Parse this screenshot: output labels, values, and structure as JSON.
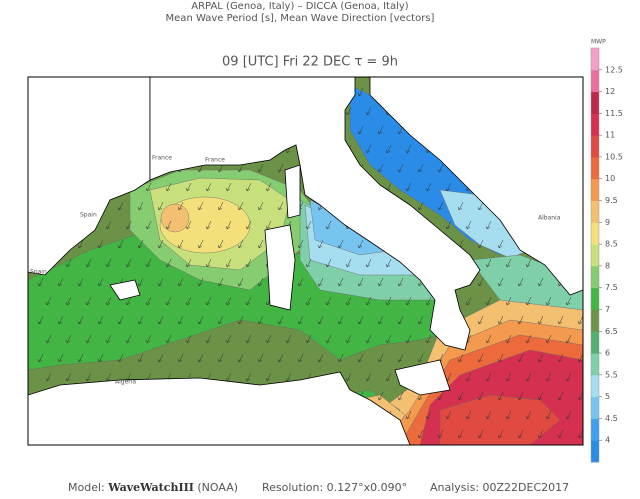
{
  "header": {
    "line1": "ARPAL (Genoa, Italy)  –  DICCA (Genoa, Italy)",
    "line2": "Mean Wave Period [s], Mean Wave Direction [vectors]",
    "title": "09 [UTC] Fri 22 DEC   τ = 9h"
  },
  "places": [
    "France",
    "Spain",
    "Algeria",
    "Albania",
    "France",
    "Spain"
  ],
  "colorbar": {
    "label": "MWP",
    "lim": [
      3.5,
      13
    ],
    "ticks": [
      4,
      4.5,
      5,
      5.5,
      6,
      6.5,
      7,
      7.5,
      8,
      8.5,
      9,
      9.5,
      10,
      10.5,
      11,
      11.5,
      12,
      12.5
    ],
    "colors": [
      "#2b8ce8",
      "#3fa0f2",
      "#78c4f0",
      "#a6def0",
      "#7fcfa8",
      "#4fb070",
      "#6c9248",
      "#43b545",
      "#86cc70",
      "#c8e07c",
      "#f3e07a",
      "#f2c070",
      "#f39a4e",
      "#ec6a3c",
      "#e04a40",
      "#d63050",
      "#c02848",
      "#e870a0",
      "#f4a0c8"
    ]
  },
  "footer": {
    "model_label": "Model:",
    "model": "WaveWatchIII",
    "agency": "(NOAA)",
    "resolution": "Resolution: 0.127°x0.090°",
    "analysis": "Analysis: 00Z22DEC2017"
  }
}
